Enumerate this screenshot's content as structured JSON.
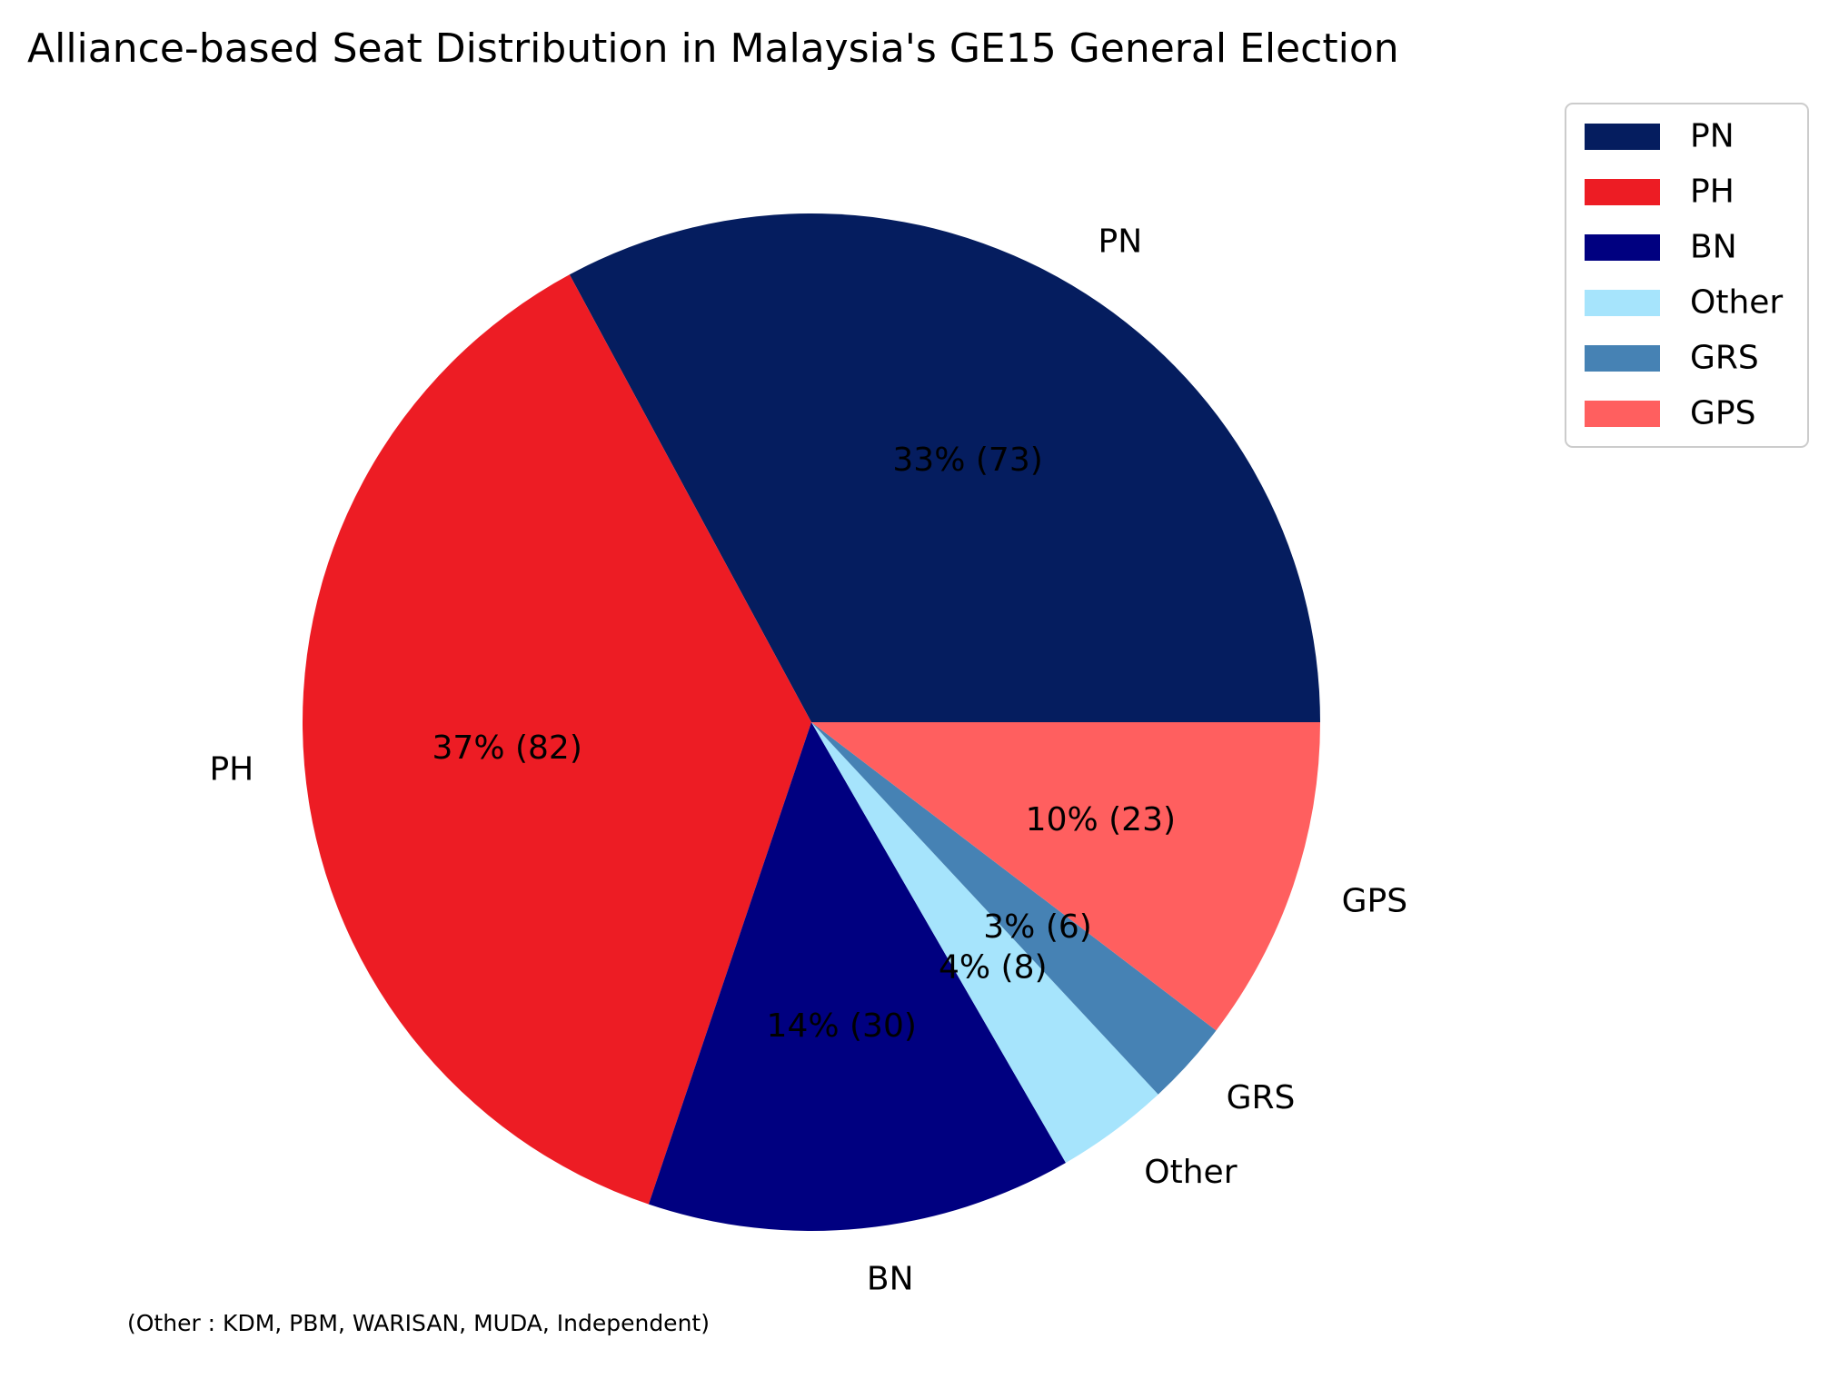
{
  "chart_data": {
    "type": "pie",
    "title": "Alliance-based Seat Distribution in Malaysia's GE15 General Election",
    "footnote": "(Other : KDM, PBM, WARISAN, MUDA, Independent)",
    "legend_position": "upper-right",
    "slices": [
      {
        "label": "PN",
        "value": 73,
        "pct_label": "33% (73)",
        "color": "#051D5F"
      },
      {
        "label": "PH",
        "value": 82,
        "pct_label": "37% (82)",
        "color": "#ED1C24"
      },
      {
        "label": "BN",
        "value": 30,
        "pct_label": "14% (30)",
        "color": "#000080"
      },
      {
        "label": "Other",
        "value": 8,
        "pct_label": "4% (8)",
        "color": "#A6E4FC"
      },
      {
        "label": "GRS",
        "value": 6,
        "pct_label": "3% (6)",
        "color": "#4682B4"
      },
      {
        "label": "GPS",
        "value": 23,
        "pct_label": "10% (23)",
        "color": "#FF5F5F"
      }
    ]
  }
}
